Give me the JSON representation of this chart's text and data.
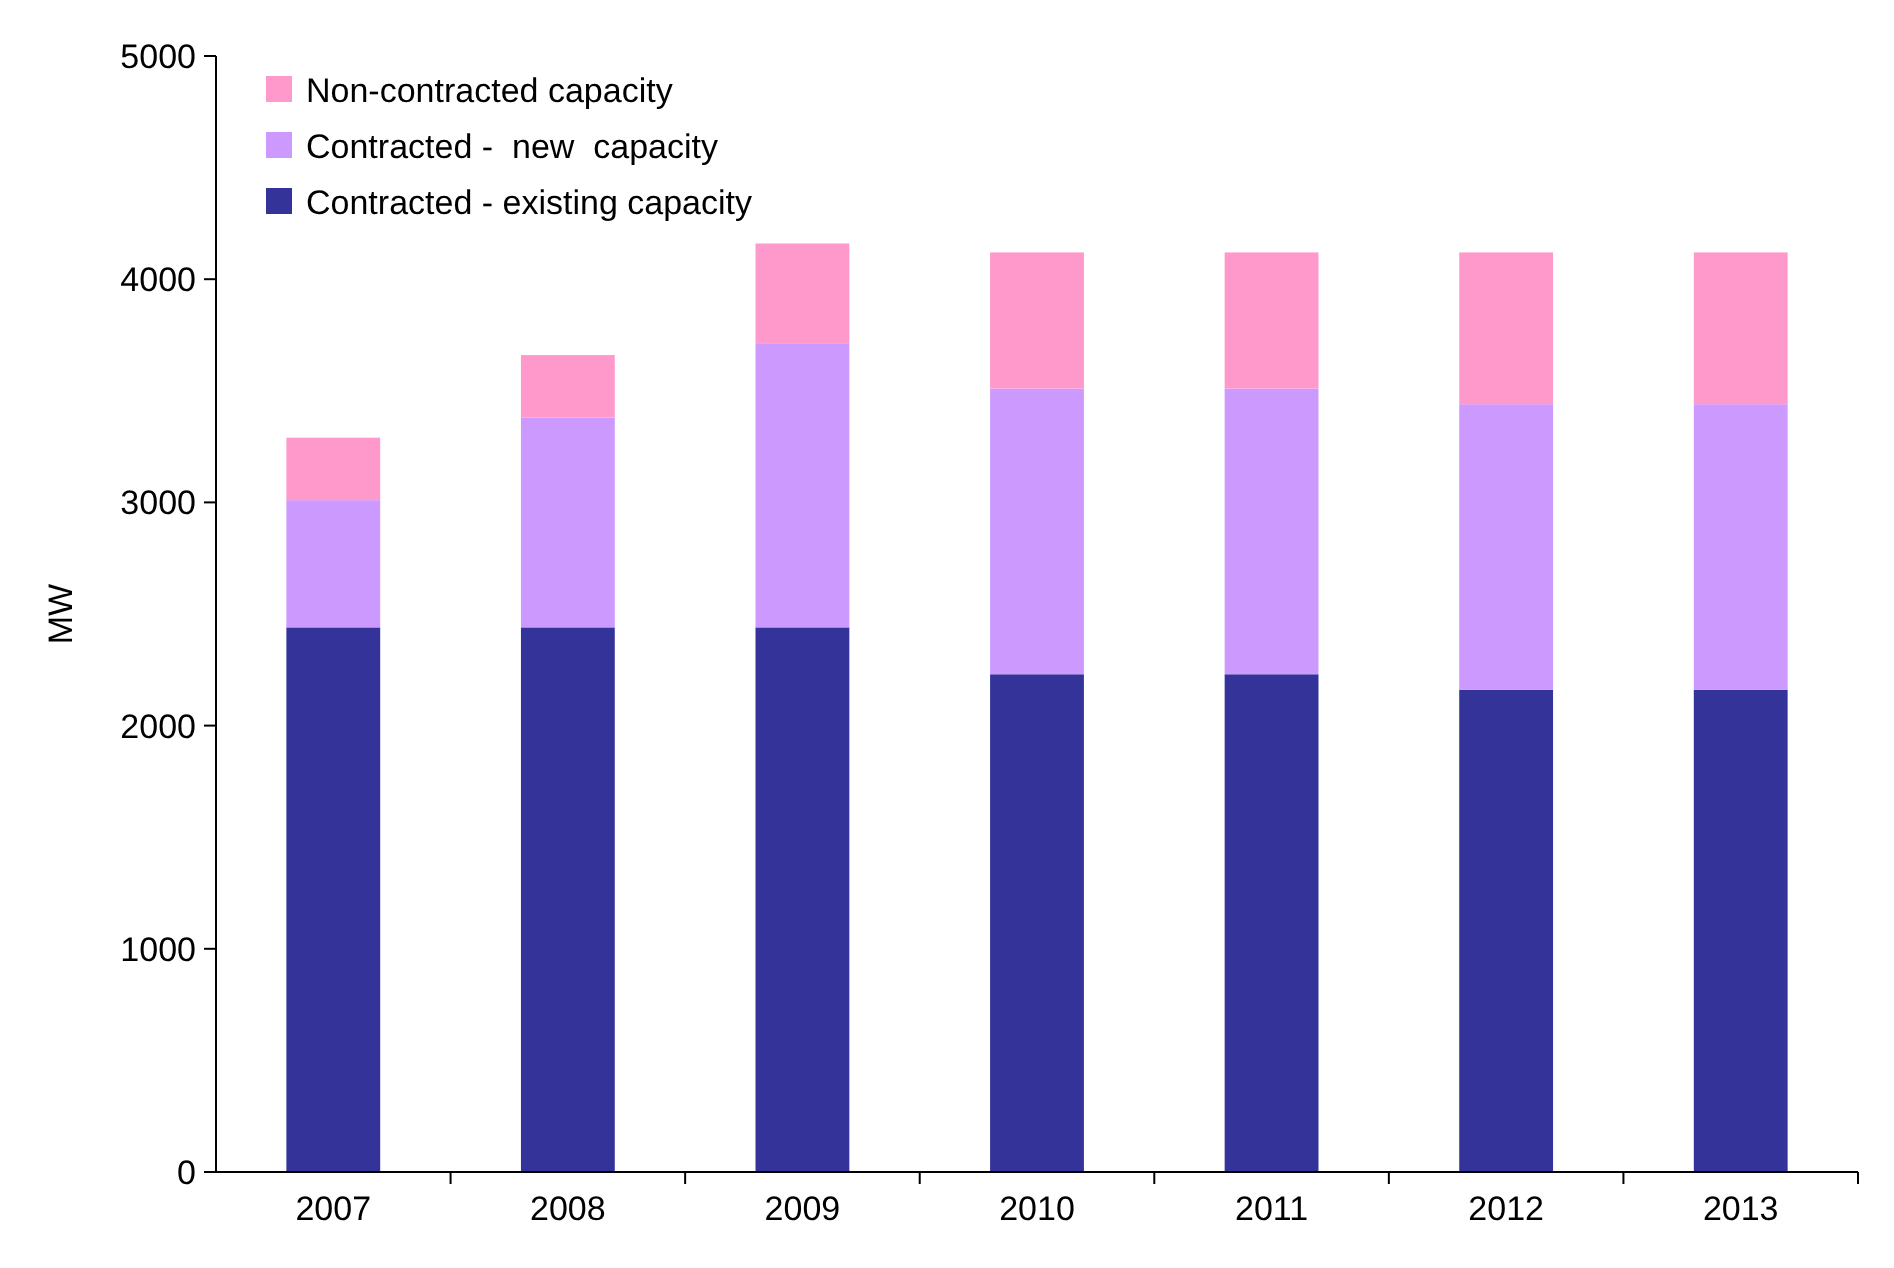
{
  "chart_data": {
    "type": "bar",
    "stacked": true,
    "ylabel": "MW",
    "categories": [
      "2007",
      "2008",
      "2009",
      "2010",
      "2011",
      "2012",
      "2013"
    ],
    "series": [
      {
        "name": "Contracted - existing capacity",
        "color": "#333399",
        "values": [
          2440,
          2440,
          2440,
          2230,
          2230,
          2160,
          2160
        ]
      },
      {
        "name": "Contracted -  new  capacity",
        "color": "#cc99ff",
        "values": [
          570,
          940,
          1270,
          1280,
          1280,
          1280,
          1280
        ]
      },
      {
        "name": "Non-contracted capacity",
        "color": "#ff99cc",
        "values": [
          280,
          280,
          450,
          610,
          610,
          680,
          680
        ]
      }
    ],
    "ylim": [
      0,
      5000
    ],
    "yticks": [
      0,
      1000,
      2000,
      3000,
      4000,
      5000
    ],
    "legend": "top left",
    "grid": false
  }
}
